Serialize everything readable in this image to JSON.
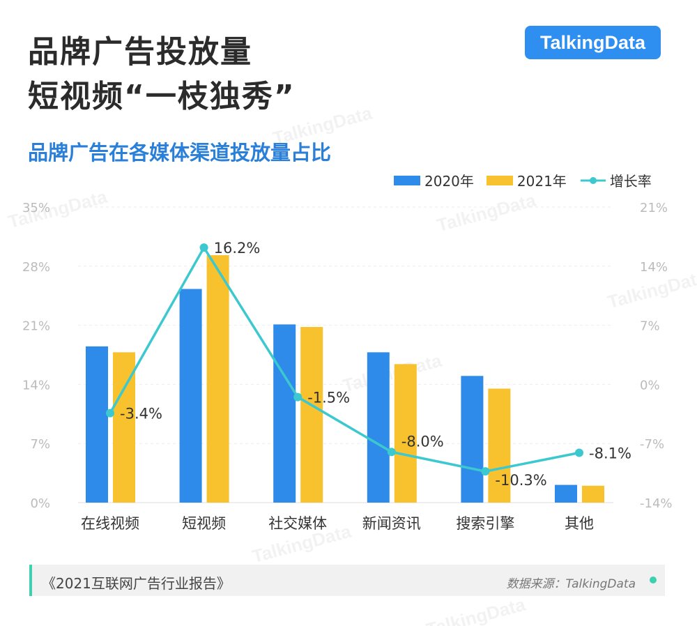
{
  "header": {
    "title_line1": "品牌广告投放量",
    "title_line2": "短视频“一枝独秀”",
    "logo": "TalkingData"
  },
  "watermark": "TalkingData",
  "chart_data": {
    "type": "bar+line",
    "title": "品牌广告在各媒体渠道投放量占比",
    "categories": [
      "在线视频",
      "短视频",
      "社交媒体",
      "新闻资讯",
      "搜索引擎",
      "其他"
    ],
    "series": [
      {
        "name": "2020年",
        "type": "bar",
        "axis": "left",
        "color": "#2e8be9",
        "values": [
          18.5,
          25.3,
          21.1,
          17.8,
          15.0,
          2.1
        ]
      },
      {
        "name": "2021年",
        "type": "bar",
        "axis": "left",
        "color": "#f7c22e",
        "values": [
          17.8,
          29.3,
          20.8,
          16.4,
          13.5,
          2.0
        ]
      },
      {
        "name": "增长率",
        "type": "line",
        "axis": "right",
        "color": "#3cc8cf",
        "values": [
          -3.4,
          16.2,
          -1.5,
          -8.0,
          -10.3,
          -8.1
        ],
        "labels": [
          "-3.4%",
          "16.2%",
          "-1.5%",
          "-8.0%",
          "-10.3%",
          "-8.1%"
        ]
      }
    ],
    "left_axis": {
      "ylim": [
        0,
        35
      ],
      "ticks": [
        "0%",
        "7%",
        "14%",
        "21%",
        "28%",
        "35%"
      ]
    },
    "right_axis": {
      "ylim": [
        -14,
        21
      ],
      "ticks": [
        "-14%",
        "-7%",
        "0%",
        "7%",
        "14%",
        "21%"
      ]
    },
    "grid": true,
    "legend": "top-right"
  },
  "footer": {
    "source_report": "《2021互联网广告行业报告》",
    "data_source": "数据来源：TalkingData"
  }
}
